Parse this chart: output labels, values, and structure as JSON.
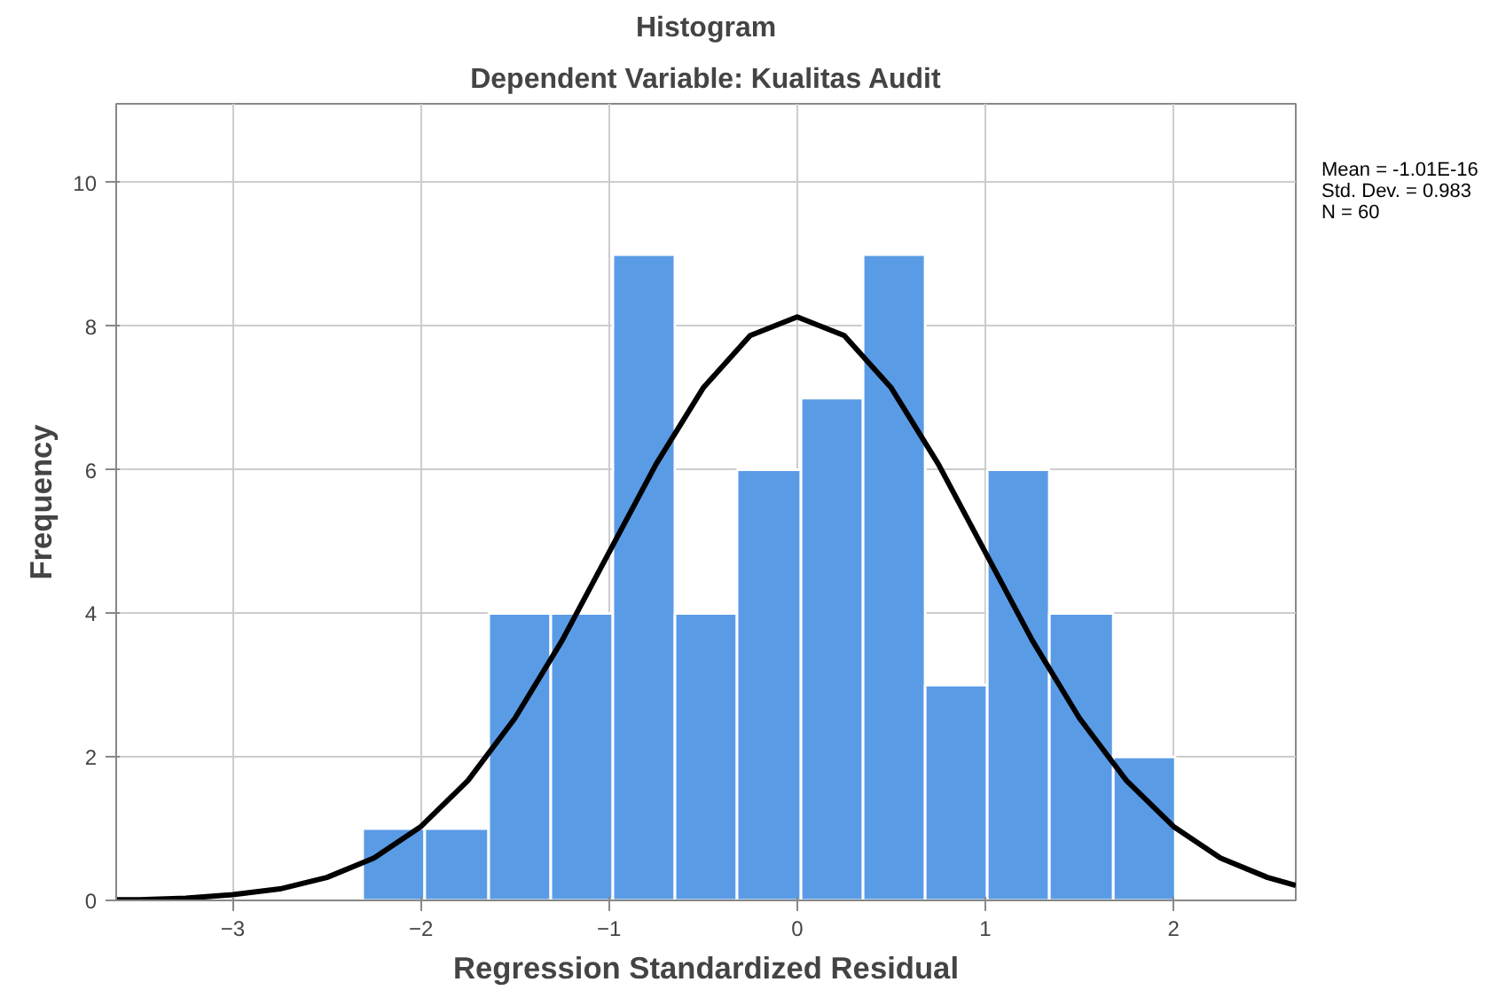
{
  "chart_data": {
    "type": "histogram",
    "title": "Histogram",
    "subtitle": "Dependent Variable: Kualitas Audit",
    "xlabel": "Regression Standardized Residual",
    "ylabel": "Frequency",
    "bins": [
      -2.31,
      -1.98,
      -1.64,
      -1.31,
      -0.98,
      -0.65,
      -0.32,
      0.02,
      0.35,
      0.68,
      1.01,
      1.34,
      1.68,
      2.01
    ],
    "values": [
      1,
      1,
      4,
      4,
      9,
      4,
      6,
      7,
      9,
      3,
      6,
      4,
      2
    ],
    "color": "#5a9be6",
    "series": [
      {
        "type": "line",
        "color": "#000000",
        "x": [
          -3.62,
          -3.5,
          -3.25,
          -3,
          -2.75,
          -2.5,
          -2.25,
          -2,
          -1.75,
          -1.5,
          -1.25,
          -1,
          -0.75,
          -0.5,
          -0.25,
          0,
          0.25,
          0.5,
          0.75,
          1,
          1.25,
          1.5,
          1.75,
          2,
          2.25,
          2.5,
          2.65
        ],
        "values": [
          0.01,
          0.01,
          0.03,
          0.08,
          0.16,
          0.32,
          0.59,
          1.03,
          1.67,
          2.54,
          3.62,
          4.85,
          6.08,
          7.14,
          7.87,
          8.13,
          7.87,
          7.14,
          6.08,
          4.85,
          3.62,
          2.54,
          1.67,
          1.03,
          0.59,
          0.32,
          0.21
        ]
      }
    ],
    "xlim": [
      -3.62,
      2.65
    ],
    "ylim": [
      0,
      11.1
    ],
    "xticks": [
      -3,
      -2,
      -1,
      0,
      1,
      2
    ],
    "yticks": [
      0,
      2,
      4,
      6,
      8,
      10
    ],
    "grid": true,
    "annotations": [
      "Mean = -1.01E-16",
      "Std. Dev. = 0.983",
      "N = 60"
    ]
  }
}
